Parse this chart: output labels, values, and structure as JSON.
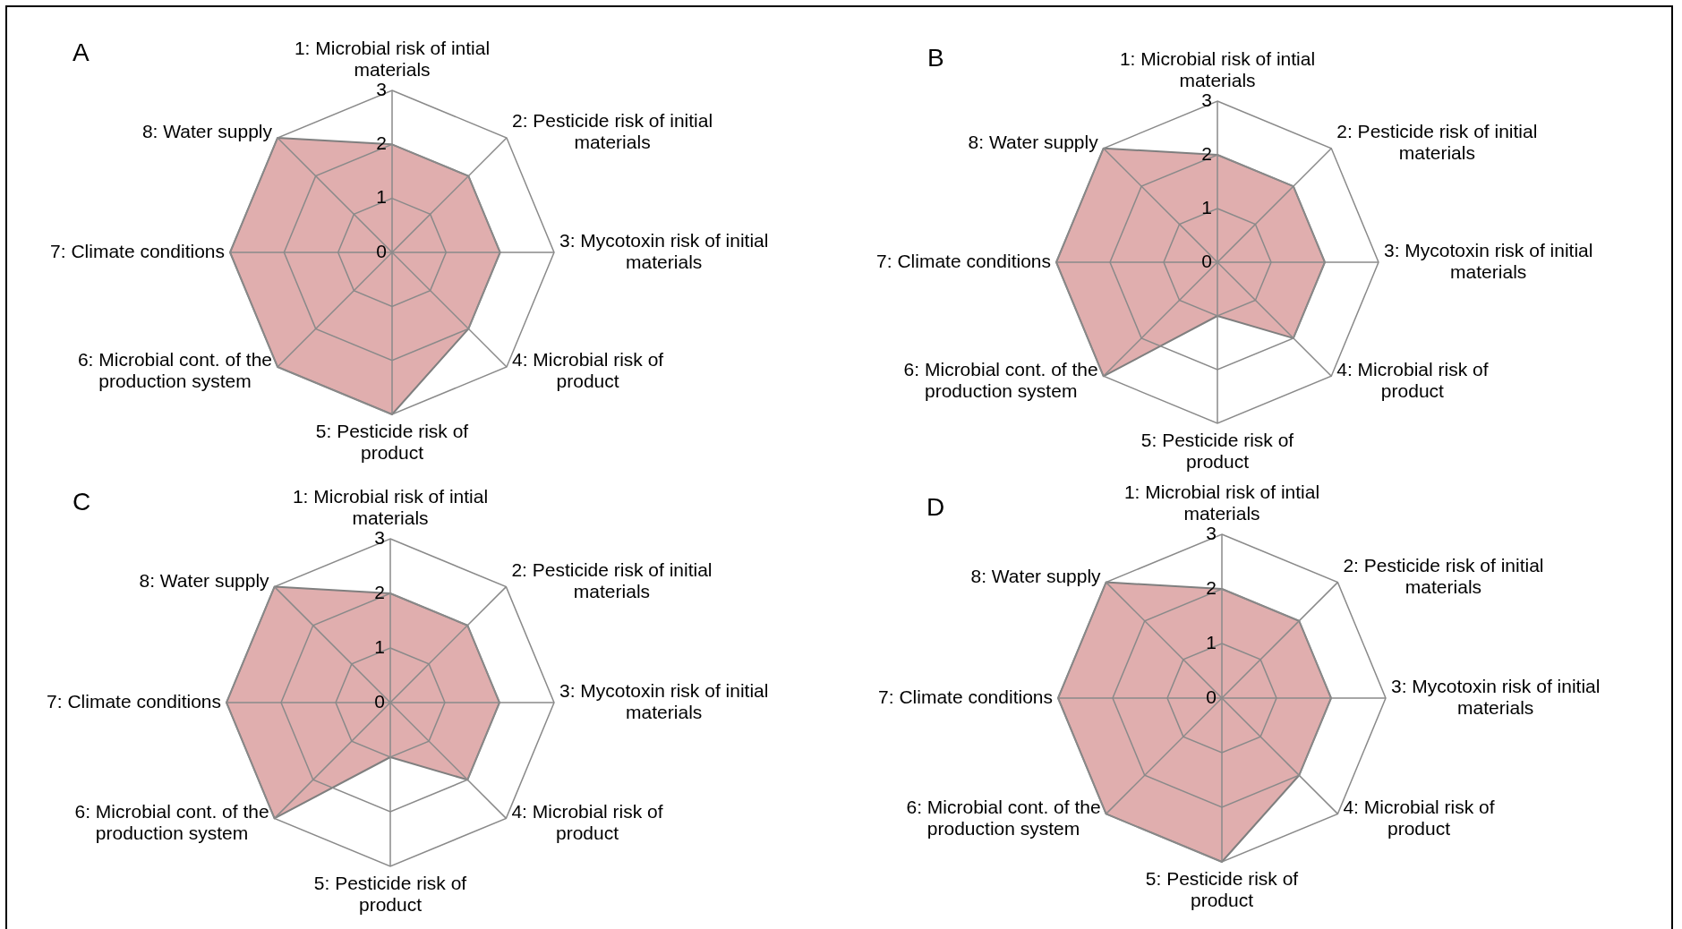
{
  "chart_data": [
    {
      "type": "radar",
      "title": "A",
      "categories": [
        "1: Microbial risk of intial materials",
        "2: Pesticide risk of initial materials",
        "3: Mycotoxin risk of initial materials",
        "4: Microbial risk of product",
        "5: Pesticide risk of product",
        "6: Microbial cont. of the production system",
        "7: Climate conditions",
        "8: Water supply"
      ],
      "series": [
        {
          "color": "#e0aeae",
          "values": [
            2,
            2,
            2,
            2,
            3,
            3,
            3,
            3
          ]
        }
      ],
      "ylim": [
        0,
        3
      ],
      "yticks": [
        0,
        1,
        2,
        3
      ],
      "grid": true
    },
    {
      "type": "radar",
      "title": "B",
      "categories": [
        "1: Microbial risk of intial materials",
        "2: Pesticide risk of initial materials",
        "3: Mycotoxin risk of initial materials",
        "4: Microbial risk of product",
        "5: Pesticide risk of product",
        "6: Microbial cont. of the production system",
        "7: Climate conditions",
        "8: Water supply"
      ],
      "series": [
        {
          "color": "#e0aeae",
          "values": [
            2,
            2,
            2,
            2,
            1,
            3,
            3,
            3
          ]
        }
      ],
      "ylim": [
        0,
        3
      ],
      "yticks": [
        0,
        1,
        2,
        3
      ],
      "grid": true
    },
    {
      "type": "radar",
      "title": "C",
      "categories": [
        "1: Microbial risk of intial materials",
        "2: Pesticide risk of initial materials",
        "3: Mycotoxin risk of initial materials",
        "4: Microbial risk of product",
        "5: Pesticide risk of product",
        "6: Microbial cont. of the production system",
        "7: Climate conditions",
        "8: Water supply"
      ],
      "series": [
        {
          "color": "#e0aeae",
          "values": [
            2,
            2,
            2,
            2,
            1,
            3,
            3,
            3
          ]
        }
      ],
      "ylim": [
        0,
        3
      ],
      "yticks": [
        0,
        1,
        2,
        3
      ],
      "grid": true
    },
    {
      "type": "radar",
      "title": "D",
      "categories": [
        "1: Microbial risk of intial materials",
        "2: Pesticide risk of initial materials",
        "3: Mycotoxin risk of initial materials",
        "4: Microbial risk of product",
        "5: Pesticide risk of product",
        "6: Microbial cont. of the production system",
        "7: Climate conditions",
        "8: Water supply"
      ],
      "series": [
        {
          "color": "#e0aeae",
          "values": [
            2,
            2,
            2,
            2,
            3,
            3,
            3,
            3
          ]
        }
      ],
      "ylim": [
        0,
        3
      ],
      "yticks": [
        0,
        1,
        2,
        3
      ],
      "grid": true
    }
  ]
}
